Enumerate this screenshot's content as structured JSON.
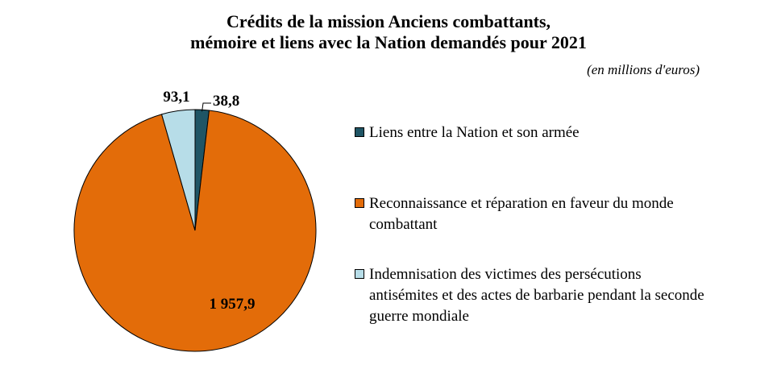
{
  "chart_data": {
    "type": "pie",
    "title_line1": "Crédits de la mission Anciens combattants,",
    "title_line2": "mémoire et liens avec la Nation demandés pour 2021",
    "subtitle": "(en millions d'euros)",
    "slices": [
      {
        "label": "Liens entre la Nation et son armée",
        "value": 38.8,
        "display": "38,8",
        "color": "#1F5565"
      },
      {
        "label": "Reconnaissance et réparation en faveur du monde combattant",
        "value": 1957.9,
        "display": "1 957,9",
        "color": "#E36C09"
      },
      {
        "label": "Indemnisation des victimes des persécutions antisémites et des actes de barbarie pendant la seconde guerre mondiale",
        "value": 93.1,
        "display": "93,1",
        "color": "#B7DDE8"
      }
    ],
    "legend_position": "right"
  }
}
